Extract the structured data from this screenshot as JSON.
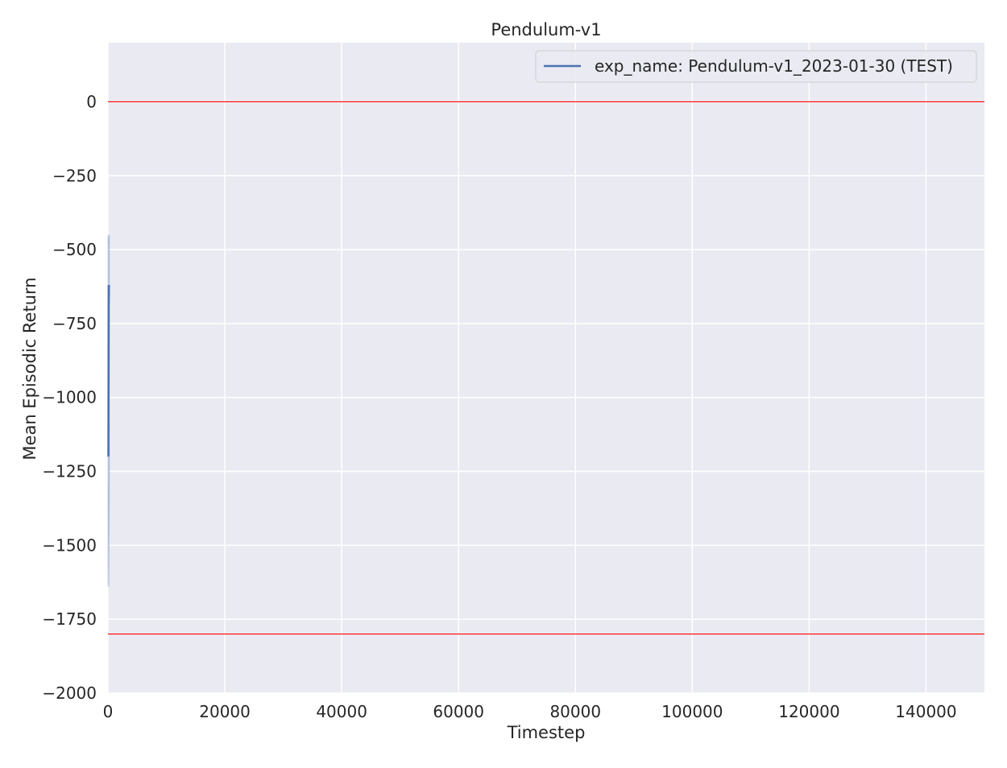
{
  "chart_data": {
    "type": "line",
    "title": "Pendulum-v1",
    "xlabel": "Timestep",
    "ylabel": "Mean Episodic Return",
    "xlim": [
      0,
      150000
    ],
    "ylim": [
      -2000,
      200
    ],
    "xticks": [
      0,
      20000,
      40000,
      60000,
      80000,
      100000,
      120000,
      140000
    ],
    "xtick_labels": [
      "0",
      "20000",
      "40000",
      "60000",
      "80000",
      "100000",
      "120000",
      "140000"
    ],
    "yticks": [
      0,
      -250,
      -500,
      -750,
      -1000,
      -1250,
      -1500,
      -1750,
      -2000
    ],
    "ytick_labels": [
      "0",
      "−250",
      "−500",
      "−750",
      "−1000",
      "−1250",
      "−1500",
      "−1750",
      "−2000"
    ],
    "grid": true,
    "legend_position": "top-right",
    "series": [
      {
        "name": "exp_name: Pendulum-v1_2023-01-30 (TEST)",
        "color": "#4c72b0",
        "x": [
          0,
          50,
          100,
          150,
          200,
          250
        ],
        "y": [
          -1200,
          -620,
          -900,
          -1200,
          -700,
          -620
        ],
        "band_x": [
          0,
          50,
          100,
          150,
          200,
          250
        ],
        "band_lower": [
          -1640,
          -1300,
          -1500,
          -1640,
          -1400,
          -1300
        ],
        "band_upper": [
          -450,
          -460,
          -470,
          -480,
          -455,
          -450
        ]
      }
    ],
    "reference_lines": [
      {
        "y": 0,
        "color": "#ff0000"
      },
      {
        "y": -1800,
        "color": "#ff0000"
      }
    ],
    "colors": {
      "axes_background": "#eaeaf2",
      "grid": "#ffffff",
      "text": "#262626",
      "legend_background": "#eaeaf2",
      "legend_border": "#cccccc"
    }
  }
}
